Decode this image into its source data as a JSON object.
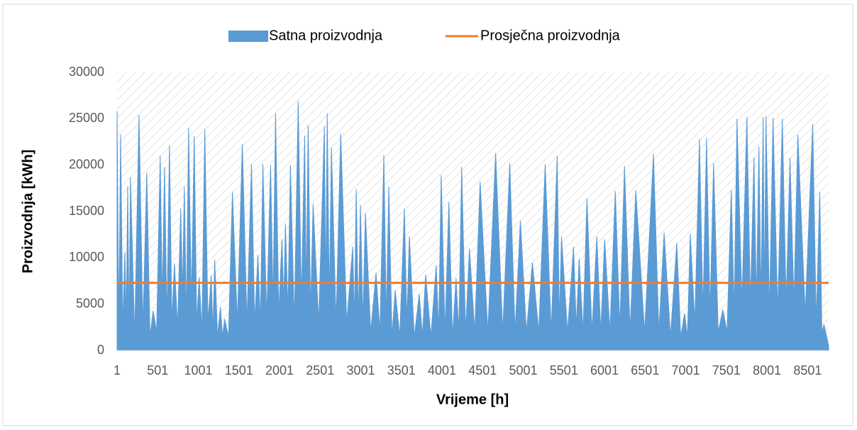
{
  "chart_data": {
    "type": "area",
    "x_label": "Vrijeme [h]",
    "y_label": "Proizvodnja [kWh]",
    "xlim": [
      1,
      8760
    ],
    "xticks": [
      1,
      501,
      1001,
      1501,
      2001,
      2501,
      3001,
      3501,
      4001,
      4501,
      5001,
      5501,
      6001,
      6501,
      7001,
      7501,
      8001,
      8501
    ],
    "ylim": [
      0,
      30000
    ],
    "yticks": [
      0,
      5000,
      10000,
      15000,
      20000,
      25000,
      30000
    ],
    "legend": "top",
    "series": [
      {
        "name": "Satna proizvodnja",
        "color": "#5b9bd5",
        "type": "area",
        "x": [
          1,
          23,
          45,
          71,
          97,
          115,
          132,
          149,
          166,
          218,
          271,
          319,
          367,
          406,
          445,
          488,
          532,
          558,
          585,
          615,
          646,
          676,
          707,
          746,
          785,
          807,
          829,
          855,
          881,
          916,
          951,
          981,
          1012,
          1046,
          1081,
          1120,
          1160,
          1181,
          1203,
          1238,
          1273,
          1299,
          1325,
          1373,
          1421,
          1482,
          1543,
          1600,
          1656,
          1695,
          1735,
          1765,
          1796,
          1843,
          1891,
          1921,
          1952,
          1991,
          2031,
          2052,
          2074,
          2104,
          2135,
          2183,
          2231,
          2270,
          2310,
          2331,
          2353,
          2383,
          2414,
          2483,
          2553,
          2570,
          2588,
          2614,
          2640,
          2697,
          2754,
          2828,
          2902,
          2923,
          2945,
          2971,
          2997,
          3027,
          3058,
          3123,
          3189,
          3237,
          3285,
          3315,
          3346,
          3385,
          3425,
          3481,
          3538,
          3568,
          3599,
          3660,
          3721,
          3760,
          3799,
          3864,
          3930,
          3960,
          3991,
          4038,
          4086,
          4130,
          4174,
          4208,
          4243,
          4291,
          4339,
          4404,
          4470,
          4565,
          4661,
          4748,
          4835,
          4900,
          4966,
          5040,
          5114,
          5192,
          5271,
          5345,
          5419,
          5445,
          5472,
          5546,
          5620,
          5654,
          5689,
          5737,
          5785,
          5846,
          5907,
          5955,
          6003,
          6068,
          6134,
          6190,
          6247,
          6316,
          6386,
          6495,
          6604,
          6670,
          6735,
          6813,
          6891,
          6939,
          6987,
          7022,
          7057,
          7113,
          7170,
          7213,
          7257,
          7300,
          7344,
          7401,
          7458,
          7510,
          7562,
          7597,
          7632,
          7693,
          7754,
          7797,
          7841,
          7871,
          7902,
          7928,
          7954,
          7970,
          7989,
          8032,
          8076,
          8133,
          8190,
          8237,
          8285,
          8333,
          8381,
          8472,
          8564,
          8607,
          8651,
          8677,
          8703,
          8760
        ],
        "values": [
          25800,
          2000,
          23300,
          2500,
          10600,
          3000,
          17700,
          2000,
          18700,
          1500,
          25400,
          2500,
          19200,
          1500,
          4300,
          2000,
          21000,
          5000,
          19800,
          3000,
          22100,
          3000,
          9400,
          2500,
          15300,
          6000,
          17700,
          3000,
          24000,
          5000,
          23100,
          3000,
          7900,
          2000,
          23900,
          3000,
          8100,
          2000,
          9800,
          1500,
          4700,
          1500,
          3400,
          1500,
          17100,
          3000,
          22300,
          3000,
          20100,
          3000,
          10300,
          3000,
          20100,
          3500,
          20000,
          5000,
          25600,
          4000,
          12000,
          5000,
          13700,
          4000,
          20000,
          3000,
          26900,
          5000,
          23200,
          6000,
          24300,
          4000,
          15800,
          3000,
          24200,
          6000,
          25600,
          5000,
          21900,
          3000,
          23400,
          3000,
          11200,
          3000,
          17400,
          3000,
          15700,
          3000,
          14800,
          2000,
          8400,
          2000,
          21100,
          3000,
          17700,
          1500,
          6500,
          1500,
          15300,
          3000,
          12300,
          1500,
          6100,
          1500,
          8200,
          1500,
          9200,
          2000,
          18900,
          2000,
          16000,
          1500,
          7800,
          2000,
          19800,
          2000,
          11000,
          2000,
          18200,
          2000,
          21300,
          2000,
          20200,
          2000,
          14000,
          2000,
          9500,
          2000,
          20100,
          2000,
          21000,
          3000,
          12300,
          2000,
          11200,
          2500,
          9900,
          2000,
          16400,
          2000,
          12300,
          2000,
          12000,
          2000,
          17200,
          2500,
          19900,
          2000,
          17300,
          2000,
          21200,
          2000,
          12700,
          1500,
          11600,
          1500,
          4000,
          1500,
          12600,
          3000,
          22800,
          4000,
          22900,
          4000,
          20200,
          2000,
          4400,
          2000,
          17300,
          4000,
          25000,
          5000,
          25200,
          5000,
          20800,
          5000,
          22000,
          5000,
          25200,
          5000,
          25300,
          4000,
          25100,
          4000,
          25000,
          5000,
          20800,
          5000,
          23300,
          4000,
          24400,
          3000,
          17100,
          2000,
          2800,
          500
        ]
      },
      {
        "name": "Prosječna proizvodnja",
        "color": "#ed7d31",
        "type": "line",
        "x": [
          1,
          8760
        ],
        "values": [
          7300,
          7300
        ]
      }
    ]
  }
}
